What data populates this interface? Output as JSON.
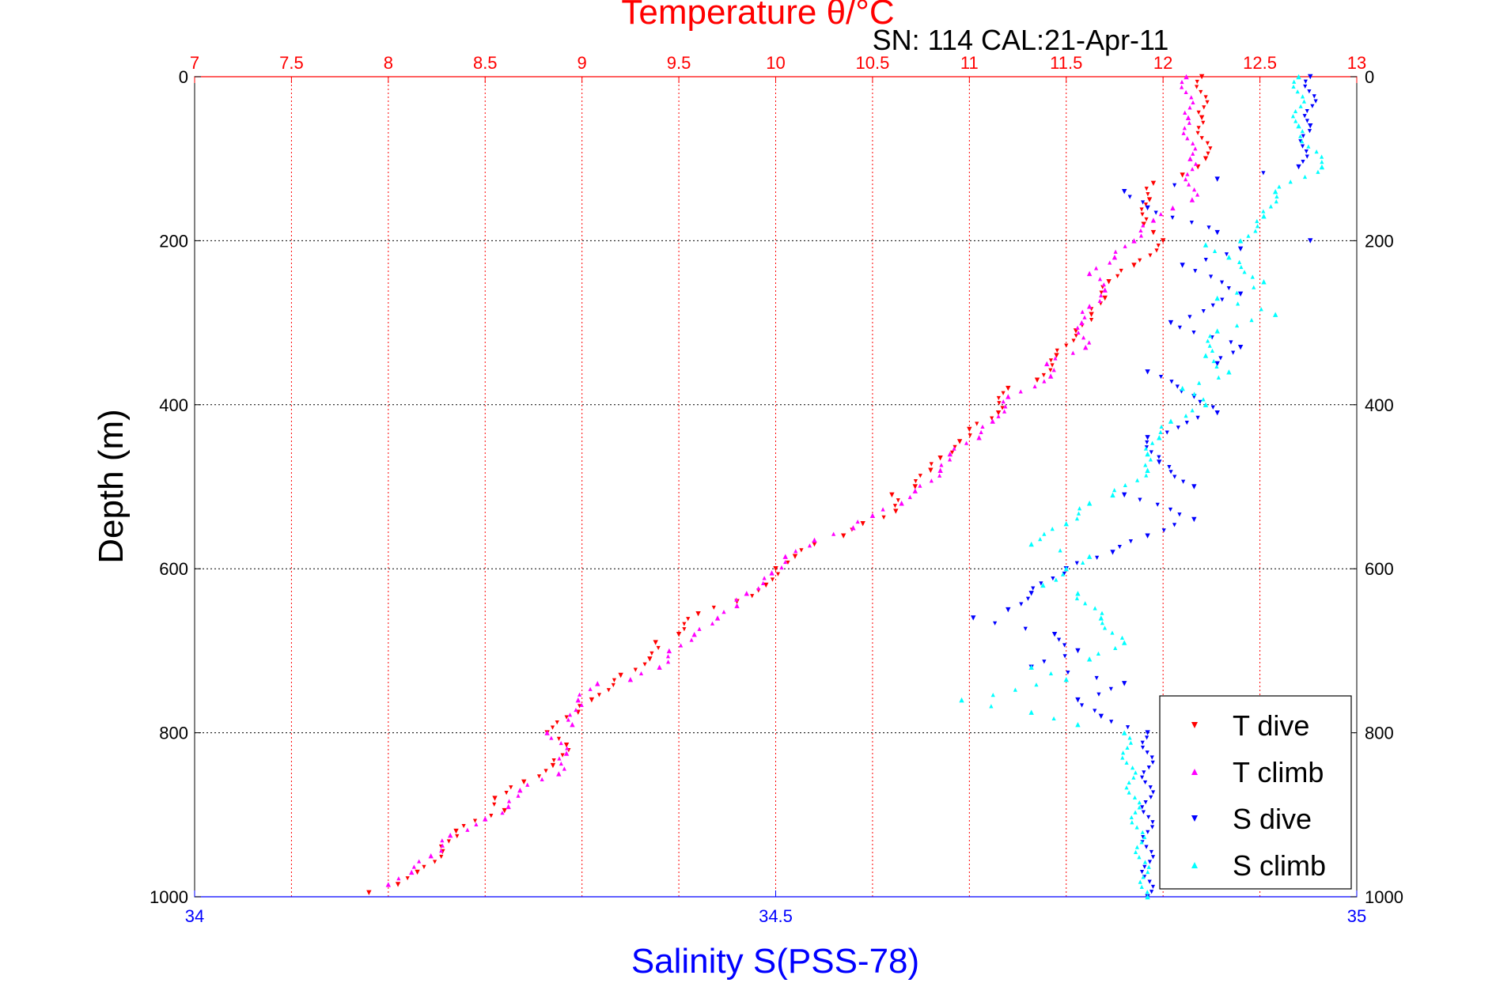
{
  "chart_data": {
    "type": "scatter",
    "title": "Temperature θ/°C",
    "subtitle": "SN: 114  CAL:21-Apr-11",
    "xlabel": "Salinity S(PSS-78)",
    "ylabel": "Depth (m)",
    "x_top_axis": {
      "label": "Temperature θ/°C",
      "range": [
        7,
        13
      ],
      "ticks": [
        "7",
        "7.5",
        "8",
        "8.5",
        "9",
        "9.5",
        "10",
        "10.5",
        "11",
        "11.5",
        "12",
        "12.5",
        "13"
      ]
    },
    "x_bottom_axis": {
      "label": "Salinity S(PSS-78)",
      "range": [
        34,
        35
      ],
      "ticks": [
        "34",
        "34.5",
        "35"
      ]
    },
    "y_axis": {
      "label": "Depth (m)",
      "range": [
        0,
        1000
      ],
      "inverted": true,
      "ticks": [
        "0",
        "200",
        "400",
        "600",
        "800",
        "1000"
      ]
    },
    "grid": true,
    "legend_position": "bottom-right",
    "series": [
      {
        "name": "T dive",
        "axis": "temperature",
        "color": "#ff0000",
        "marker": "triangle-down",
        "points": [
          [
            12.2,
            0
          ],
          [
            12.2,
            50
          ],
          [
            12.22,
            100
          ],
          [
            12.18,
            110
          ],
          [
            12.1,
            120
          ],
          [
            11.95,
            130
          ],
          [
            11.93,
            150
          ],
          [
            11.9,
            180
          ],
          [
            11.95,
            190
          ],
          [
            12.0,
            200
          ],
          [
            11.85,
            230
          ],
          [
            11.72,
            250
          ],
          [
            11.7,
            270
          ],
          [
            11.63,
            290
          ],
          [
            11.55,
            310
          ],
          [
            11.45,
            340
          ],
          [
            11.35,
            370
          ],
          [
            11.2,
            380
          ],
          [
            11.15,
            410
          ],
          [
            11.0,
            430
          ],
          [
            10.95,
            445
          ],
          [
            10.85,
            465
          ],
          [
            10.8,
            480
          ],
          [
            10.72,
            500
          ],
          [
            10.6,
            510
          ],
          [
            10.62,
            530
          ],
          [
            10.45,
            545
          ],
          [
            10.35,
            560
          ],
          [
            10.2,
            570
          ],
          [
            10.1,
            585
          ],
          [
            10.0,
            600
          ],
          [
            9.95,
            620
          ],
          [
            9.8,
            640
          ],
          [
            9.6,
            655
          ],
          [
            9.5,
            680
          ],
          [
            9.38,
            690
          ],
          [
            9.35,
            710
          ],
          [
            9.2,
            730
          ],
          [
            9.05,
            760
          ],
          [
            8.98,
            775
          ],
          [
            8.82,
            800
          ],
          [
            8.92,
            815
          ],
          [
            8.85,
            840
          ],
          [
            8.7,
            860
          ],
          [
            8.55,
            880
          ],
          [
            8.6,
            895
          ],
          [
            8.35,
            920
          ],
          [
            8.28,
            945
          ],
          [
            8.15,
            970
          ],
          [
            8.05,
            985
          ],
          [
            7.9,
            995
          ]
        ]
      },
      {
        "name": "T climb",
        "axis": "temperature",
        "color": "#ff00ff",
        "marker": "triangle-up",
        "points": [
          [
            12.12,
            0
          ],
          [
            12.13,
            50
          ],
          [
            12.14,
            100
          ],
          [
            12.15,
            150
          ],
          [
            12.05,
            160
          ],
          [
            11.95,
            175
          ],
          [
            11.85,
            200
          ],
          [
            11.75,
            220
          ],
          [
            11.62,
            240
          ],
          [
            11.7,
            260
          ],
          [
            11.62,
            280
          ],
          [
            11.58,
            300
          ],
          [
            11.6,
            330
          ],
          [
            11.4,
            350
          ],
          [
            11.42,
            365
          ],
          [
            11.2,
            390
          ],
          [
            11.12,
            420
          ],
          [
            11.05,
            440
          ],
          [
            10.9,
            460
          ],
          [
            10.85,
            480
          ],
          [
            10.72,
            505
          ],
          [
            10.65,
            520
          ],
          [
            10.5,
            535
          ],
          [
            10.4,
            550
          ],
          [
            10.2,
            565
          ],
          [
            10.05,
            585
          ],
          [
            9.98,
            605
          ],
          [
            9.85,
            630
          ],
          [
            9.8,
            645
          ],
          [
            9.7,
            660
          ],
          [
            9.58,
            680
          ],
          [
            9.45,
            700
          ],
          [
            9.4,
            720
          ],
          [
            9.25,
            735
          ],
          [
            9.08,
            740
          ],
          [
            8.98,
            760
          ],
          [
            8.95,
            790
          ],
          [
            8.82,
            800
          ],
          [
            8.92,
            825
          ],
          [
            8.88,
            850
          ],
          [
            8.68,
            870
          ],
          [
            8.62,
            890
          ],
          [
            8.5,
            905
          ],
          [
            8.32,
            925
          ],
          [
            8.22,
            950
          ],
          [
            8.12,
            970
          ],
          [
            8.0,
            985
          ]
        ]
      },
      {
        "name": "S dive",
        "axis": "salinity",
        "color": "#0000ff",
        "marker": "triangle-down",
        "points": [
          [
            34.96,
            0
          ],
          [
            34.96,
            60
          ],
          [
            34.95,
            110
          ],
          [
            34.88,
            125
          ],
          [
            34.8,
            140
          ],
          [
            34.82,
            160
          ],
          [
            34.88,
            190
          ],
          [
            34.96,
            200
          ],
          [
            34.9,
            210
          ],
          [
            34.85,
            230
          ],
          [
            34.9,
            265
          ],
          [
            34.84,
            300
          ],
          [
            34.9,
            330
          ],
          [
            34.88,
            350
          ],
          [
            34.82,
            360
          ],
          [
            34.86,
            390
          ],
          [
            34.88,
            410
          ],
          [
            34.82,
            440
          ],
          [
            34.83,
            470
          ],
          [
            34.86,
            500
          ],
          [
            34.8,
            510
          ],
          [
            34.86,
            540
          ],
          [
            34.82,
            560
          ],
          [
            34.79,
            580
          ],
          [
            34.75,
            600
          ],
          [
            34.72,
            630
          ],
          [
            34.7,
            650
          ],
          [
            34.67,
            660
          ],
          [
            34.74,
            680
          ],
          [
            34.76,
            700
          ],
          [
            34.72,
            720
          ],
          [
            34.8,
            740
          ],
          [
            34.76,
            760
          ],
          [
            34.78,
            780
          ],
          [
            34.82,
            800
          ],
          [
            34.82,
            1000
          ]
        ]
      },
      {
        "name": "S climb",
        "axis": "salinity",
        "color": "#00ffff",
        "marker": "triangle-up",
        "points": [
          [
            34.95,
            0
          ],
          [
            34.95,
            60
          ],
          [
            34.97,
            110
          ],
          [
            34.93,
            140
          ],
          [
            34.92,
            170
          ],
          [
            34.9,
            200
          ],
          [
            34.87,
            205
          ],
          [
            34.89,
            220
          ],
          [
            34.92,
            250
          ],
          [
            34.88,
            270
          ],
          [
            34.93,
            290
          ],
          [
            34.88,
            310
          ],
          [
            34.87,
            340
          ],
          [
            34.89,
            360
          ],
          [
            34.85,
            380
          ],
          [
            34.87,
            400
          ],
          [
            34.84,
            420
          ],
          [
            34.83,
            440
          ],
          [
            34.82,
            460
          ],
          [
            34.82,
            480
          ],
          [
            34.79,
            510
          ],
          [
            34.77,
            520
          ],
          [
            34.75,
            545
          ],
          [
            34.72,
            570
          ],
          [
            34.77,
            585
          ],
          [
            34.75,
            600
          ],
          [
            34.73,
            620
          ],
          [
            34.76,
            630
          ],
          [
            34.78,
            660
          ],
          [
            34.8,
            690
          ],
          [
            34.77,
            710
          ],
          [
            34.72,
            720
          ],
          [
            34.75,
            735
          ],
          [
            34.66,
            760
          ],
          [
            34.72,
            775
          ],
          [
            34.76,
            790
          ],
          [
            34.8,
            800
          ],
          [
            34.82,
            1000
          ]
        ]
      }
    ]
  }
}
